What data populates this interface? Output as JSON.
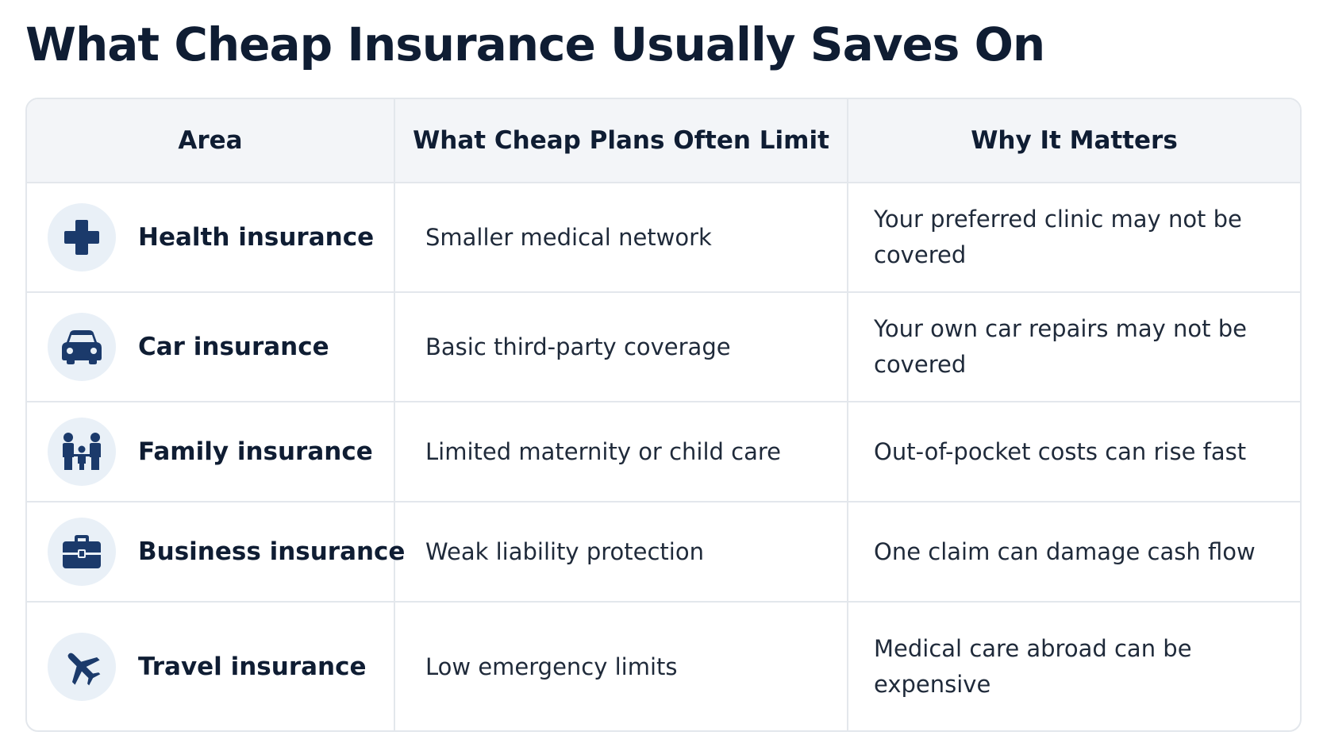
{
  "title": "What Cheap Insurance Usually Saves On",
  "colors": {
    "heading": "#0f1d33",
    "icon": "#1b3a6b",
    "icon_bg": "#e9f0f7",
    "header_bg": "#f3f5f8",
    "border": "#e3e7ec"
  },
  "table": {
    "headers": [
      "Area",
      "What Cheap Plans Often Limit",
      "Why It Matters"
    ],
    "rows": [
      {
        "icon": "medical-cross-icon",
        "area": "Health insurance",
        "limit": "Smaller medical network",
        "matters": "Your preferred clinic may not be covered"
      },
      {
        "icon": "car-icon",
        "area": "Car insurance",
        "limit": "Basic third-party coverage",
        "matters": "Your own car repairs may not be covered"
      },
      {
        "icon": "family-icon",
        "area": "Family insurance",
        "limit": "Limited maternity or child care",
        "matters": "Out-of-pocket costs can rise fast"
      },
      {
        "icon": "briefcase-icon",
        "area": "Business insurance",
        "limit": "Weak liability protection",
        "matters": "One claim can damage cash flow"
      },
      {
        "icon": "airplane-icon",
        "area": "Travel insurance",
        "limit": "Low emergency limits",
        "matters": "Medical care abroad can be expensive"
      }
    ]
  }
}
